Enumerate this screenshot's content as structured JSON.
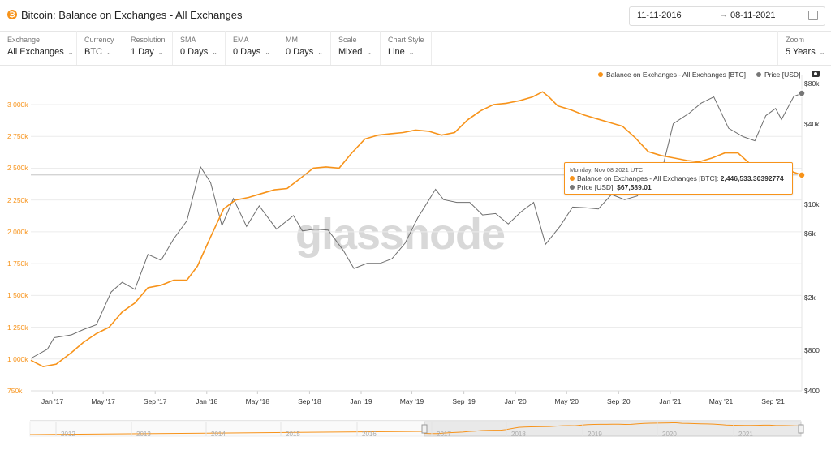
{
  "header": {
    "title": "Bitcoin: Balance on Exchanges - All Exchanges",
    "title_icon": "bitcoin-icon",
    "date_from": "11-11-2016",
    "date_arrow": "→",
    "date_to": "08-11-2021"
  },
  "controls": [
    {
      "label": "Exchange",
      "value": "All Exchanges"
    },
    {
      "label": "Currency",
      "value": "BTC"
    },
    {
      "label": "Resolution",
      "value": "1 Day"
    },
    {
      "label": "SMA",
      "value": "0 Days"
    },
    {
      "label": "EMA",
      "value": "0 Days"
    },
    {
      "label": "MM",
      "value": "0 Days"
    },
    {
      "label": "Scale",
      "value": "Mixed"
    },
    {
      "label": "Chart Style",
      "value": "Line"
    }
  ],
  "zoom": {
    "label": "Zoom",
    "value": "5 Years"
  },
  "watermark": "glassnode",
  "tooltip": {
    "date": "Monday, Nov 08 2021 UTC",
    "balance_label": "Balance on Exchanges - All Exchanges [BTC]:",
    "balance_value": "2,446,533.30392774",
    "price_label": "Price [USD]:",
    "price_value": "$67,589.01"
  },
  "colors": {
    "balance": "#f7931a",
    "price": "#6e6e6e",
    "grid": "#ececec"
  },
  "navigator_years": [
    "2012",
    "2013",
    "2014",
    "2015",
    "2016",
    "2017",
    "2018",
    "2019",
    "2020",
    "2021"
  ],
  "chart_data": {
    "type": "line",
    "title": "Bitcoin: Balance on Exchanges - All Exchanges",
    "x_range": [
      "2016-11-11",
      "2021-11-08"
    ],
    "x_ticks": [
      "Jan '17",
      "May '17",
      "Sep '17",
      "Jan '18",
      "May '18",
      "Sep '18",
      "Jan '19",
      "May '19",
      "Sep '19",
      "Jan '20",
      "May '20",
      "Sep '20",
      "Jan '21",
      "May '21",
      "Sep '21"
    ],
    "y_left": {
      "label": "Balance on Exchanges - All Exchanges [BTC]",
      "ticks": [
        "750k",
        "1 000k",
        "1 250k",
        "1 500k",
        "1 750k",
        "2 000k",
        "2 250k",
        "2 500k",
        "2 750k",
        "3 000k"
      ],
      "ylim": [
        750000,
        3000000
      ]
    },
    "y_right": {
      "label": "Price [USD]",
      "scale": "log",
      "ticks": [
        "$400",
        "$800",
        "$2k",
        "$6k",
        "$10k",
        "$40k",
        "$80k"
      ],
      "ylim": [
        400,
        80000
      ]
    },
    "legend": {
      "placement": "top-right",
      "entries": [
        "Balance on Exchanges - All Exchanges [BTC]",
        "Price [USD]"
      ]
    },
    "grid": true,
    "series": [
      {
        "name": "Balance on Exchanges - All Exchanges [BTC]",
        "axis": "left",
        "points": [
          [
            "2016-11-11",
            990000
          ],
          [
            "2016-12-10",
            940000
          ],
          [
            "2017-01-10",
            960000
          ],
          [
            "2017-02-15",
            1050000
          ],
          [
            "2017-03-15",
            1130000
          ],
          [
            "2017-04-15",
            1200000
          ],
          [
            "2017-05-15",
            1250000
          ],
          [
            "2017-06-15",
            1370000
          ],
          [
            "2017-07-15",
            1440000
          ],
          [
            "2017-08-15",
            1560000
          ],
          [
            "2017-09-15",
            1580000
          ],
          [
            "2017-10-15",
            1620000
          ],
          [
            "2017-11-15",
            1620000
          ],
          [
            "2017-12-10",
            1730000
          ],
          [
            "2018-01-10",
            1960000
          ],
          [
            "2018-02-10",
            2180000
          ],
          [
            "2018-03-10",
            2250000
          ],
          [
            "2018-04-10",
            2270000
          ],
          [
            "2018-05-10",
            2300000
          ],
          [
            "2018-06-10",
            2330000
          ],
          [
            "2018-07-10",
            2340000
          ],
          [
            "2018-08-10",
            2420000
          ],
          [
            "2018-09-10",
            2500000
          ],
          [
            "2018-10-10",
            2510000
          ],
          [
            "2018-11-10",
            2500000
          ],
          [
            "2018-12-10",
            2620000
          ],
          [
            "2019-01-10",
            2730000
          ],
          [
            "2019-02-10",
            2760000
          ],
          [
            "2019-03-10",
            2770000
          ],
          [
            "2019-04-10",
            2780000
          ],
          [
            "2019-05-10",
            2800000
          ],
          [
            "2019-06-10",
            2790000
          ],
          [
            "2019-07-10",
            2760000
          ],
          [
            "2019-08-10",
            2780000
          ],
          [
            "2019-09-10",
            2880000
          ],
          [
            "2019-10-10",
            2950000
          ],
          [
            "2019-11-10",
            3000000
          ],
          [
            "2019-12-10",
            3010000
          ],
          [
            "2020-01-10",
            3030000
          ],
          [
            "2020-02-10",
            3060000
          ],
          [
            "2020-03-05",
            3100000
          ],
          [
            "2020-03-20",
            3060000
          ],
          [
            "2020-04-10",
            2990000
          ],
          [
            "2020-05-10",
            2960000
          ],
          [
            "2020-06-10",
            2920000
          ],
          [
            "2020-07-10",
            2890000
          ],
          [
            "2020-08-10",
            2860000
          ],
          [
            "2020-09-10",
            2830000
          ],
          [
            "2020-10-10",
            2740000
          ],
          [
            "2020-11-10",
            2630000
          ],
          [
            "2020-12-10",
            2600000
          ],
          [
            "2021-01-10",
            2580000
          ],
          [
            "2021-02-10",
            2560000
          ],
          [
            "2021-03-10",
            2550000
          ],
          [
            "2021-04-10",
            2580000
          ],
          [
            "2021-05-10",
            2620000
          ],
          [
            "2021-06-10",
            2620000
          ],
          [
            "2021-07-10",
            2530000
          ],
          [
            "2021-08-10",
            2540000
          ],
          [
            "2021-09-10",
            2520000
          ],
          [
            "2021-10-10",
            2480000
          ],
          [
            "2021-11-08",
            2446533
          ]
        ]
      },
      {
        "name": "Price [USD]",
        "axis": "right",
        "points": [
          [
            "2016-11-11",
            700
          ],
          [
            "2016-12-20",
            820
          ],
          [
            "2017-01-05",
            1000
          ],
          [
            "2017-02-15",
            1050
          ],
          [
            "2017-03-15",
            1150
          ],
          [
            "2017-04-15",
            1250
          ],
          [
            "2017-05-20",
            2200
          ],
          [
            "2017-06-15",
            2600
          ],
          [
            "2017-07-15",
            2300
          ],
          [
            "2017-08-15",
            4200
          ],
          [
            "2017-09-15",
            3800
          ],
          [
            "2017-10-15",
            5500
          ],
          [
            "2017-11-15",
            7500
          ],
          [
            "2017-12-17",
            19000
          ],
          [
            "2018-01-10",
            14500
          ],
          [
            "2018-02-06",
            6900
          ],
          [
            "2018-03-05",
            11000
          ],
          [
            "2018-04-05",
            6800
          ],
          [
            "2018-05-05",
            9700
          ],
          [
            "2018-06-15",
            6500
          ],
          [
            "2018-07-25",
            8200
          ],
          [
            "2018-08-15",
            6300
          ],
          [
            "2018-09-15",
            6500
          ],
          [
            "2018-10-15",
            6400
          ],
          [
            "2018-11-20",
            4500
          ],
          [
            "2018-12-15",
            3300
          ],
          [
            "2019-01-15",
            3600
          ],
          [
            "2019-02-15",
            3600
          ],
          [
            "2019-03-15",
            3900
          ],
          [
            "2019-04-15",
            5100
          ],
          [
            "2019-05-15",
            7900
          ],
          [
            "2019-06-26",
            12900
          ],
          [
            "2019-07-15",
            10800
          ],
          [
            "2019-08-15",
            10300
          ],
          [
            "2019-09-15",
            10300
          ],
          [
            "2019-10-15",
            8300
          ],
          [
            "2019-11-15",
            8500
          ],
          [
            "2019-12-15",
            7100
          ],
          [
            "2020-01-15",
            8800
          ],
          [
            "2020-02-13",
            10300
          ],
          [
            "2020-03-12",
            5000
          ],
          [
            "2020-04-15",
            6800
          ],
          [
            "2020-05-15",
            9500
          ],
          [
            "2020-06-15",
            9400
          ],
          [
            "2020-07-15",
            9200
          ],
          [
            "2020-08-15",
            11800
          ],
          [
            "2020-09-15",
            10800
          ],
          [
            "2020-10-15",
            11500
          ],
          [
            "2020-11-15",
            16000
          ],
          [
            "2020-12-15",
            19400
          ],
          [
            "2021-01-08",
            40000
          ],
          [
            "2021-02-15",
            48000
          ],
          [
            "2021-03-15",
            57000
          ],
          [
            "2021-04-14",
            63500
          ],
          [
            "2021-05-19",
            37000
          ],
          [
            "2021-06-22",
            32000
          ],
          [
            "2021-07-20",
            29800
          ],
          [
            "2021-08-15",
            46000
          ],
          [
            "2021-09-07",
            52000
          ],
          [
            "2021-09-21",
            43000
          ],
          [
            "2021-10-20",
            64000
          ],
          [
            "2021-11-08",
            67589
          ]
        ]
      }
    ]
  }
}
